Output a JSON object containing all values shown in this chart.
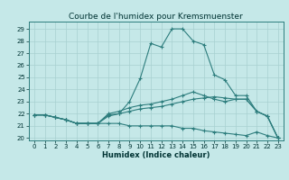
{
  "title": "Courbe de l'humidex pour Kremsmuenster",
  "xlabel": "Humidex (Indice chaleur)",
  "ylabel": "",
  "bg_color": "#c5e8e8",
  "grid_color": "#a8d0d0",
  "line_color": "#2d7d7d",
  "xlim": [
    -0.5,
    23.5
  ],
  "ylim": [
    19.8,
    29.6
  ],
  "xticks": [
    0,
    1,
    2,
    3,
    4,
    5,
    6,
    7,
    8,
    9,
    10,
    11,
    12,
    13,
    14,
    15,
    16,
    17,
    18,
    19,
    20,
    21,
    22,
    23
  ],
  "yticks": [
    20,
    21,
    22,
    23,
    24,
    25,
    26,
    27,
    28,
    29
  ],
  "line1_x": [
    0,
    1,
    2,
    3,
    4,
    5,
    6,
    7,
    8,
    9,
    10,
    11,
    12,
    13,
    14,
    15,
    16,
    17,
    18,
    19,
    20,
    21,
    22,
    23
  ],
  "line1_y": [
    21.9,
    21.9,
    21.7,
    21.5,
    21.2,
    21.2,
    21.2,
    21.9,
    22.0,
    23.0,
    24.9,
    27.8,
    27.5,
    29.0,
    29.0,
    28.0,
    27.7,
    25.2,
    24.8,
    23.5,
    23.5,
    22.2,
    21.8,
    20.0
  ],
  "line2_x": [
    0,
    1,
    2,
    3,
    4,
    5,
    6,
    7,
    8,
    9,
    10,
    11,
    12,
    13,
    14,
    15,
    16,
    17,
    18,
    19,
    20,
    21,
    22,
    23
  ],
  "line2_y": [
    21.9,
    21.9,
    21.7,
    21.5,
    21.2,
    21.2,
    21.2,
    22.0,
    22.2,
    22.5,
    22.7,
    22.8,
    23.0,
    23.2,
    23.5,
    23.8,
    23.5,
    23.2,
    23.0,
    23.2,
    23.2,
    22.2,
    21.8,
    20.0
  ],
  "line3_x": [
    0,
    1,
    2,
    3,
    4,
    5,
    6,
    7,
    8,
    9,
    10,
    11,
    12,
    13,
    14,
    15,
    16,
    17,
    18,
    19,
    20,
    21,
    22,
    23
  ],
  "line3_y": [
    21.9,
    21.9,
    21.7,
    21.5,
    21.2,
    21.2,
    21.2,
    21.8,
    22.0,
    22.2,
    22.4,
    22.5,
    22.6,
    22.8,
    23.0,
    23.2,
    23.3,
    23.4,
    23.3,
    23.2,
    23.2,
    22.2,
    21.8,
    20.0
  ],
  "line4_x": [
    0,
    1,
    2,
    3,
    4,
    5,
    6,
    7,
    8,
    9,
    10,
    11,
    12,
    13,
    14,
    15,
    16,
    17,
    18,
    19,
    20,
    21,
    22,
    23
  ],
  "line4_y": [
    21.9,
    21.9,
    21.7,
    21.5,
    21.2,
    21.2,
    21.2,
    21.2,
    21.2,
    21.0,
    21.0,
    21.0,
    21.0,
    21.0,
    20.8,
    20.8,
    20.6,
    20.5,
    20.4,
    20.3,
    20.2,
    20.5,
    20.2,
    20.0
  ],
  "title_fontsize": 6.5,
  "label_fontsize": 6,
  "tick_fontsize": 5
}
